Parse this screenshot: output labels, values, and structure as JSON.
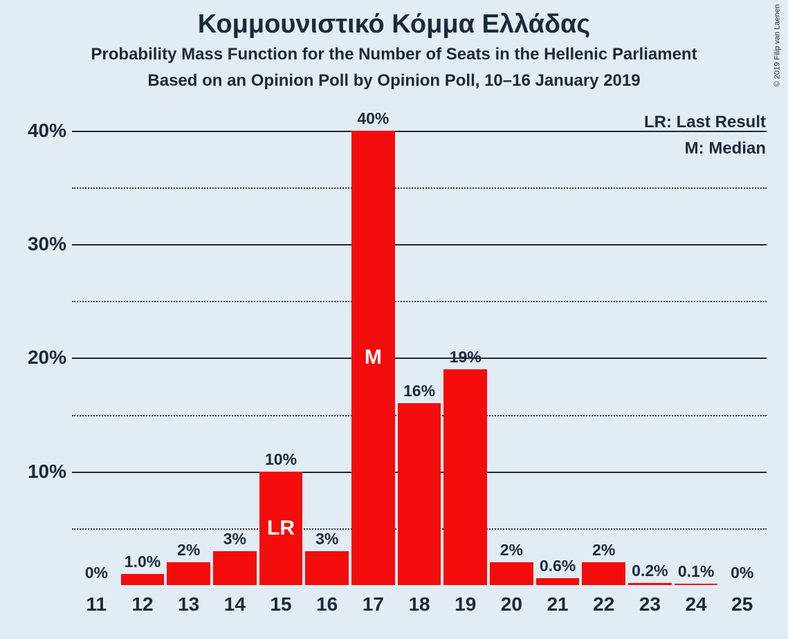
{
  "meta": {
    "copyright": "© 2019 Filip van Laenen"
  },
  "titles": {
    "main": "Κομμουνιστικό Κόμμα Ελλάδας",
    "sub1": "Probability Mass Function for the Number of Seats in the Hellenic Parliament",
    "sub2": "Based on an Opinion Poll by Opinion Poll, 10–16 January 2019"
  },
  "legend": {
    "lr": "LR: Last Result",
    "m": "M: Median"
  },
  "chart": {
    "type": "bar",
    "background_color": "#e2ecf4",
    "bar_color": "#f40b0b",
    "text_color": "#1a2a3a",
    "grid_major_color": "#1a2a3a",
    "grid_minor_color": "#333333",
    "marker_text_color": "#ffffff",
    "title_fontsize": 38,
    "subtitle_fontsize": 24,
    "axis_label_fontsize": 28,
    "value_label_fontsize": 23,
    "marker_fontsize": 30,
    "copyright_fontsize": 11,
    "y": {
      "min": 0,
      "max": 42,
      "major_ticks": [
        10,
        20,
        30,
        40
      ],
      "minor_ticks": [
        5,
        15,
        25,
        35
      ],
      "tick_labels": [
        "10%",
        "20%",
        "30%",
        "40%"
      ]
    },
    "categories": [
      "11",
      "12",
      "13",
      "14",
      "15",
      "16",
      "17",
      "18",
      "19",
      "20",
      "21",
      "22",
      "23",
      "24",
      "25"
    ],
    "bars": [
      {
        "x": "11",
        "value": 0.0,
        "label": "0%",
        "marker": ""
      },
      {
        "x": "12",
        "value": 1.0,
        "label": "1.0%",
        "marker": ""
      },
      {
        "x": "13",
        "value": 2.0,
        "label": "2%",
        "marker": ""
      },
      {
        "x": "14",
        "value": 3.0,
        "label": "3%",
        "marker": ""
      },
      {
        "x": "15",
        "value": 10.0,
        "label": "10%",
        "marker": "LR"
      },
      {
        "x": "16",
        "value": 3.0,
        "label": "3%",
        "marker": ""
      },
      {
        "x": "17",
        "value": 40.0,
        "label": "40%",
        "marker": "M"
      },
      {
        "x": "18",
        "value": 16.0,
        "label": "16%",
        "marker": ""
      },
      {
        "x": "19",
        "value": 19.0,
        "label": "19%",
        "marker": ""
      },
      {
        "x": "20",
        "value": 2.0,
        "label": "2%",
        "marker": ""
      },
      {
        "x": "21",
        "value": 0.6,
        "label": "0.6%",
        "marker": ""
      },
      {
        "x": "22",
        "value": 2.0,
        "label": "2%",
        "marker": ""
      },
      {
        "x": "23",
        "value": 0.2,
        "label": "0.2%",
        "marker": ""
      },
      {
        "x": "24",
        "value": 0.1,
        "label": "0.1%",
        "marker": ""
      },
      {
        "x": "25",
        "value": 0.0,
        "label": "0%",
        "marker": ""
      }
    ]
  }
}
